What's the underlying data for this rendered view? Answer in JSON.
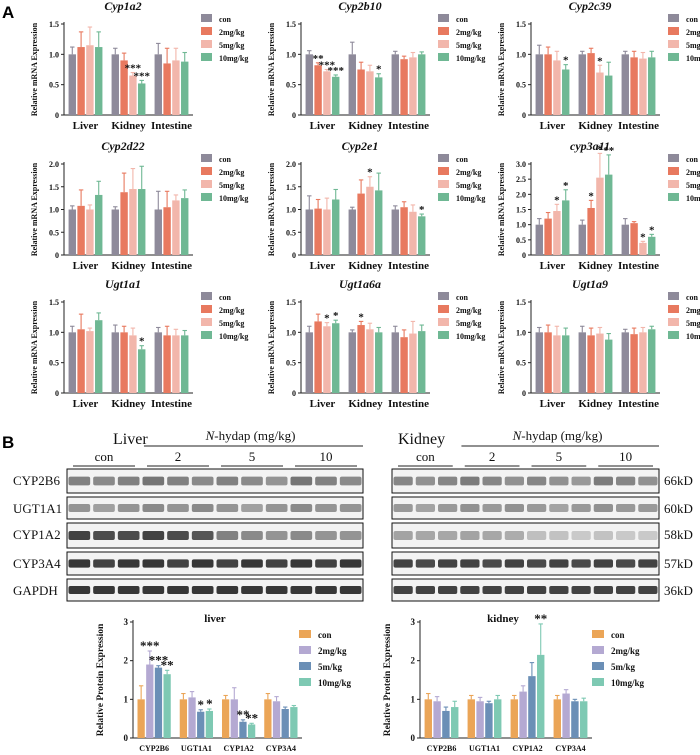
{
  "colors": {
    "con": "#8e8a9a",
    "c2": "#e8795f",
    "c5": "#f2b6ab",
    "c10": "#6fb894",
    "prot_con": "#eba557",
    "prot_2": "#b4a9d2",
    "prot_5": "#6b8fb6",
    "prot_10": "#7ec9b3"
  },
  "panel_labels": {
    "a": "A",
    "b": "B"
  },
  "mrna_ylabel": "Relative mRNA Expression",
  "mrna_categories": [
    "Liver",
    "Kidney",
    "Intestine"
  ],
  "mrna_legend": [
    "con",
    "2mg/kg",
    "5mg/kg",
    "10mg/kg"
  ],
  "blot": {
    "liver_title": "Liver",
    "kidney_title": "Kidney",
    "treatment_prefix": "N",
    "treatment_suffix": "-hydap (mg/kg)",
    "groups": [
      "con",
      "2",
      "5",
      "10"
    ],
    "proteins": [
      "CYP2B6",
      "UGT1A1",
      "CYP1A2",
      "CYP3A4",
      "GAPDH"
    ],
    "sizes": [
      "66kD",
      "60kD",
      "58kD",
      "57kD",
      "36kD"
    ]
  },
  "chart_data": [
    {
      "type": "bar",
      "title": "Cyp1a2",
      "ylabel": "Relative mRNA Expression",
      "ylim": [
        0,
        1.5
      ],
      "yticks": [
        0,
        0.5,
        1.0,
        1.5
      ],
      "categories": [
        "Liver",
        "Kidney",
        "Intestine"
      ],
      "series": [
        {
          "name": "con",
          "values": [
            1.0,
            1.0,
            1.0
          ],
          "errors": [
            0.12,
            0.1,
            0.18
          ]
        },
        {
          "name": "2mg/kg",
          "values": [
            1.12,
            0.9,
            0.85
          ],
          "errors": [
            0.25,
            0.12,
            0.25
          ]
        },
        {
          "name": "5mg/kg",
          "values": [
            1.15,
            0.65,
            0.9
          ],
          "errors": [
            0.3,
            0.05,
            0.2
          ]
        },
        {
          "name": "10mg/kg",
          "values": [
            1.12,
            0.52,
            0.88
          ],
          "errors": [
            0.25,
            0.05,
            0.15
          ]
        }
      ],
      "annotations": [
        {
          "category": "Kidney",
          "series": "5mg/kg",
          "text": "***"
        },
        {
          "category": "Kidney",
          "series": "10mg/kg",
          "text": "***"
        }
      ]
    },
    {
      "type": "bar",
      "title": "Cyp2b10",
      "ylabel": "Relative mRNA Expression",
      "ylim": [
        0,
        1.5
      ],
      "yticks": [
        0,
        0.5,
        1.0,
        1.5
      ],
      "categories": [
        "Liver",
        "Kidney",
        "Intestine"
      ],
      "series": [
        {
          "name": "con",
          "values": [
            1.0,
            1.0,
            1.0
          ],
          "errors": [
            0.06,
            0.2,
            0.05
          ]
        },
        {
          "name": "2mg/kg",
          "values": [
            0.82,
            0.75,
            0.92
          ],
          "errors": [
            0.04,
            0.12,
            0.05
          ]
        },
        {
          "name": "5mg/kg",
          "values": [
            0.72,
            0.72,
            0.95
          ],
          "errors": [
            0.03,
            0.1,
            0.08
          ]
        },
        {
          "name": "10mg/kg",
          "values": [
            0.63,
            0.62,
            1.0
          ],
          "errors": [
            0.03,
            0.06,
            0.04
          ]
        }
      ],
      "annotations": [
        {
          "category": "Liver",
          "series": "2mg/kg",
          "text": "**"
        },
        {
          "category": "Liver",
          "series": "5mg/kg",
          "text": "***"
        },
        {
          "category": "Liver",
          "series": "10mg/kg",
          "text": "***"
        },
        {
          "category": "Kidney",
          "series": "10mg/kg",
          "text": "*"
        }
      ]
    },
    {
      "type": "bar",
      "title": "Cyp2c39",
      "ylabel": "Relative mRNA Expression",
      "ylim": [
        0,
        1.5
      ],
      "yticks": [
        0,
        0.5,
        1.0,
        1.5
      ],
      "categories": [
        "Liver",
        "Kidney",
        "Intestine"
      ],
      "series": [
        {
          "name": "con",
          "values": [
            1.0,
            1.0,
            1.0
          ],
          "errors": [
            0.15,
            0.05,
            0.05
          ]
        },
        {
          "name": "2mg/kg",
          "values": [
            1.0,
            1.02,
            0.95
          ],
          "errors": [
            0.12,
            0.08,
            0.1
          ]
        },
        {
          "name": "5mg/kg",
          "values": [
            0.9,
            0.7,
            0.93
          ],
          "errors": [
            0.15,
            0.12,
            0.1
          ]
        },
        {
          "name": "10mg/kg",
          "values": [
            0.75,
            0.65,
            0.95
          ],
          "errors": [
            0.08,
            0.22,
            0.1
          ]
        }
      ],
      "annotations": [
        {
          "category": "Liver",
          "series": "10mg/kg",
          "text": "*"
        },
        {
          "category": "Kidney",
          "series": "5mg/kg",
          "text": "*"
        }
      ]
    },
    {
      "type": "bar",
      "title": "Cyp2d22",
      "ylabel": "Relative mRNA Expression",
      "ylim": [
        0,
        2.0
      ],
      "yticks": [
        0,
        0.5,
        1.0,
        1.5,
        2.0
      ],
      "categories": [
        "Liver",
        "Kidney",
        "Intestine"
      ],
      "series": [
        {
          "name": "con",
          "values": [
            1.0,
            1.0,
            1.0
          ],
          "errors": [
            0.08,
            0.06,
            0.4
          ]
        },
        {
          "name": "2mg/kg",
          "values": [
            1.08,
            1.38,
            1.05
          ],
          "errors": [
            0.35,
            0.42,
            0.35
          ]
        },
        {
          "name": "5mg/kg",
          "values": [
            1.0,
            1.45,
            1.2
          ],
          "errors": [
            0.1,
            0.45,
            0.12
          ]
        },
        {
          "name": "10mg/kg",
          "values": [
            1.32,
            1.45,
            1.25
          ],
          "errors": [
            0.3,
            0.5,
            0.18
          ]
        }
      ],
      "annotations": []
    },
    {
      "type": "bar",
      "title": "Cyp2e1",
      "ylabel": "Relative mRNA Expression",
      "ylim": [
        0,
        2.0
      ],
      "yticks": [
        0,
        0.5,
        1.0,
        1.5,
        2.0
      ],
      "categories": [
        "Liver",
        "Kidney",
        "Intestine"
      ],
      "series": [
        {
          "name": "con",
          "values": [
            1.0,
            1.0,
            1.0
          ],
          "errors": [
            0.3,
            0.05,
            0.08
          ]
        },
        {
          "name": "2mg/kg",
          "values": [
            1.02,
            1.35,
            1.05
          ],
          "errors": [
            0.2,
            0.3,
            0.12
          ]
        },
        {
          "name": "5mg/kg",
          "values": [
            1.0,
            1.5,
            0.95
          ],
          "errors": [
            0.25,
            0.22,
            0.15
          ]
        },
        {
          "name": "10mg/kg",
          "values": [
            1.22,
            1.42,
            0.85
          ],
          "errors": [
            0.22,
            0.38,
            0.05
          ]
        }
      ],
      "annotations": [
        {
          "category": "Kidney",
          "series": "5mg/kg",
          "text": "*"
        },
        {
          "category": "Intestine",
          "series": "10mg/kg",
          "text": "*"
        }
      ]
    },
    {
      "type": "bar",
      "title": "cyp3a11",
      "ylabel": "Relative mRNA Expression",
      "ylim": [
        0,
        3.0
      ],
      "yticks": [
        0,
        0.5,
        1.0,
        1.5,
        2.0,
        2.5,
        3.0
      ],
      "categories": [
        "Liver",
        "Kidney",
        "Intestine"
      ],
      "series": [
        {
          "name": "con",
          "values": [
            1.0,
            1.0,
            1.0
          ],
          "errors": [
            0.2,
            0.15,
            0.2
          ]
        },
        {
          "name": "2mg/kg",
          "values": [
            1.2,
            1.55,
            1.05
          ],
          "errors": [
            0.2,
            0.25,
            0.05
          ]
        },
        {
          "name": "5mg/kg",
          "values": [
            1.45,
            2.55,
            0.4
          ],
          "errors": [
            0.22,
            0.8,
            0.05
          ]
        },
        {
          "name": "10mg/kg",
          "values": [
            1.8,
            2.65,
            0.6
          ],
          "errors": [
            0.35,
            0.65,
            0.08
          ]
        }
      ],
      "annotations": [
        {
          "category": "Liver",
          "series": "5mg/kg",
          "text": "*"
        },
        {
          "category": "Liver",
          "series": "10mg/kg",
          "text": "*"
        },
        {
          "category": "Kidney",
          "series": "2mg/kg",
          "text": "*"
        },
        {
          "category": "Kidney",
          "series": "5mg/kg",
          "text": "*"
        },
        {
          "category": "Kidney",
          "series": "10mg/kg",
          "text": "**"
        },
        {
          "category": "Intestine",
          "series": "5mg/kg",
          "text": "*"
        },
        {
          "category": "Intestine",
          "series": "10mg/kg",
          "text": "*"
        }
      ]
    },
    {
      "type": "bar",
      "title": "Ugt1a1",
      "ylabel": "Relative mRNA Expression",
      "ylim": [
        0,
        1.5
      ],
      "yticks": [
        0,
        0.5,
        1.0,
        1.5
      ],
      "categories": [
        "Liver",
        "Kidney",
        "Intestine"
      ],
      "series": [
        {
          "name": "con",
          "values": [
            1.0,
            1.0,
            1.0
          ],
          "errors": [
            0.1,
            0.12,
            0.08
          ]
        },
        {
          "name": "2mg/kg",
          "values": [
            1.05,
            1.0,
            0.95
          ],
          "errors": [
            0.25,
            0.1,
            0.15
          ]
        },
        {
          "name": "5mg/kg",
          "values": [
            1.02,
            0.95,
            0.95
          ],
          "errors": [
            0.05,
            0.12,
            0.1
          ]
        },
        {
          "name": "10mg/kg",
          "values": [
            1.2,
            0.72,
            0.95
          ],
          "errors": [
            0.12,
            0.06,
            0.08
          ]
        }
      ],
      "annotations": [
        {
          "category": "Kidney",
          "series": "10mg/kg",
          "text": "*"
        }
      ]
    },
    {
      "type": "bar",
      "title": "Ugt1a6a",
      "ylabel": "Relative mRNA Expression",
      "ylim": [
        0,
        1.5
      ],
      "yticks": [
        0,
        0.5,
        1.0,
        1.5
      ],
      "categories": [
        "Liver",
        "Kidney",
        "Intestine"
      ],
      "series": [
        {
          "name": "con",
          "values": [
            1.0,
            1.0,
            1.0
          ],
          "errors": [
            0.1,
            0.04,
            0.1
          ]
        },
        {
          "name": "2mg/kg",
          "values": [
            1.18,
            1.12,
            0.92
          ],
          "errors": [
            0.12,
            0.06,
            0.12
          ]
        },
        {
          "name": "5mg/kg",
          "values": [
            1.1,
            1.05,
            0.98
          ],
          "errors": [
            0.06,
            0.1,
            0.2
          ]
        },
        {
          "name": "10mg/kg",
          "values": [
            1.15,
            1.0,
            1.02
          ],
          "errors": [
            0.05,
            0.08,
            0.1
          ]
        }
      ],
      "annotations": [
        {
          "category": "Liver",
          "series": "5mg/kg",
          "text": "*"
        },
        {
          "category": "Liver",
          "series": "10mg/kg",
          "text": "*"
        },
        {
          "category": "Kidney",
          "series": "2mg/kg",
          "text": "*"
        }
      ]
    },
    {
      "type": "bar",
      "title": "Ugt1a9",
      "ylabel": "Relative mRNA Expression",
      "ylim": [
        0,
        1.5
      ],
      "yticks": [
        0,
        0.5,
        1.0,
        1.5
      ],
      "categories": [
        "Liver",
        "Kidney",
        "Intestine"
      ],
      "series": [
        {
          "name": "con",
          "values": [
            1.0,
            1.0,
            1.0
          ],
          "errors": [
            0.08,
            0.1,
            0.05
          ]
        },
        {
          "name": "2mg/kg",
          "values": [
            1.0,
            0.95,
            0.97
          ],
          "errors": [
            0.12,
            0.12,
            0.1
          ]
        },
        {
          "name": "5mg/kg",
          "values": [
            0.95,
            0.98,
            1.0
          ],
          "errors": [
            0.15,
            0.1,
            0.08
          ]
        },
        {
          "name": "10mg/kg",
          "values": [
            0.95,
            0.88,
            1.05
          ],
          "errors": [
            0.12,
            0.1,
            0.05
          ]
        }
      ],
      "annotations": []
    },
    {
      "type": "bar",
      "title": "liver",
      "ylabel": "Relative Protein Expression",
      "ylim": [
        0,
        3
      ],
      "yticks": [
        0,
        1,
        2,
        3
      ],
      "categories": [
        "CYP2B6",
        "UGT1A1",
        "CYP1A2",
        "CYP3A4"
      ],
      "legend": [
        "con",
        "2mg/kg",
        "5m/kg",
        "10mg/kg"
      ],
      "series": [
        {
          "name": "con",
          "values": [
            1.0,
            1.0,
            1.0,
            1.0
          ],
          "errors": [
            0.35,
            0.15,
            0.1,
            0.15
          ]
        },
        {
          "name": "2mg/kg",
          "values": [
            1.9,
            1.05,
            1.0,
            0.95
          ],
          "errors": [
            0.35,
            0.15,
            0.3,
            0.12
          ]
        },
        {
          "name": "5m/kg",
          "values": [
            1.82,
            0.68,
            0.42,
            0.75
          ],
          "errors": [
            0.05,
            0.05,
            0.05,
            0.05
          ]
        },
        {
          "name": "10mg/kg",
          "values": [
            1.65,
            0.7,
            0.35,
            0.8
          ],
          "errors": [
            0.1,
            0.05,
            0.03,
            0.04
          ]
        }
      ],
      "annotations": [
        {
          "category": "CYP2B6",
          "series": "2mg/kg",
          "text": "***"
        },
        {
          "category": "CYP2B6",
          "series": "5m/kg",
          "text": "***"
        },
        {
          "category": "CYP2B6",
          "series": "10mg/kg",
          "text": "**"
        },
        {
          "category": "UGT1A1",
          "series": "5m/kg",
          "text": "*"
        },
        {
          "category": "UGT1A1",
          "series": "10mg/kg",
          "text": "*"
        },
        {
          "category": "CYP1A2",
          "series": "5m/kg",
          "text": "**"
        },
        {
          "category": "CYP1A2",
          "series": "10mg/kg",
          "text": "**"
        }
      ]
    },
    {
      "type": "bar",
      "title": "kidney",
      "ylabel": "Relative Protein Expression",
      "ylim": [
        0,
        3
      ],
      "yticks": [
        0,
        1,
        2,
        3
      ],
      "categories": [
        "CYP2B6",
        "UGT1A1",
        "CYP1A2",
        "CYP3A4"
      ],
      "legend": [
        "con",
        "2mg/kg",
        "5m/kg",
        "10mg/kg"
      ],
      "series": [
        {
          "name": "con",
          "values": [
            1.0,
            1.0,
            1.0,
            1.0
          ],
          "errors": [
            0.15,
            0.1,
            0.1,
            0.1
          ]
        },
        {
          "name": "2mg/kg",
          "values": [
            0.95,
            0.95,
            1.2,
            1.15
          ],
          "errors": [
            0.12,
            0.1,
            0.15,
            0.1
          ]
        },
        {
          "name": "5m/kg",
          "values": [
            0.7,
            0.9,
            1.6,
            0.95
          ],
          "errors": [
            0.1,
            0.05,
            0.35,
            0.05
          ]
        },
        {
          "name": "10mg/kg",
          "values": [
            0.8,
            1.0,
            2.15,
            0.95
          ],
          "errors": [
            0.15,
            0.1,
            0.8,
            0.08
          ]
        }
      ],
      "annotations": [
        {
          "category": "CYP1A2",
          "series": "10mg/kg",
          "text": "**"
        }
      ]
    }
  ]
}
